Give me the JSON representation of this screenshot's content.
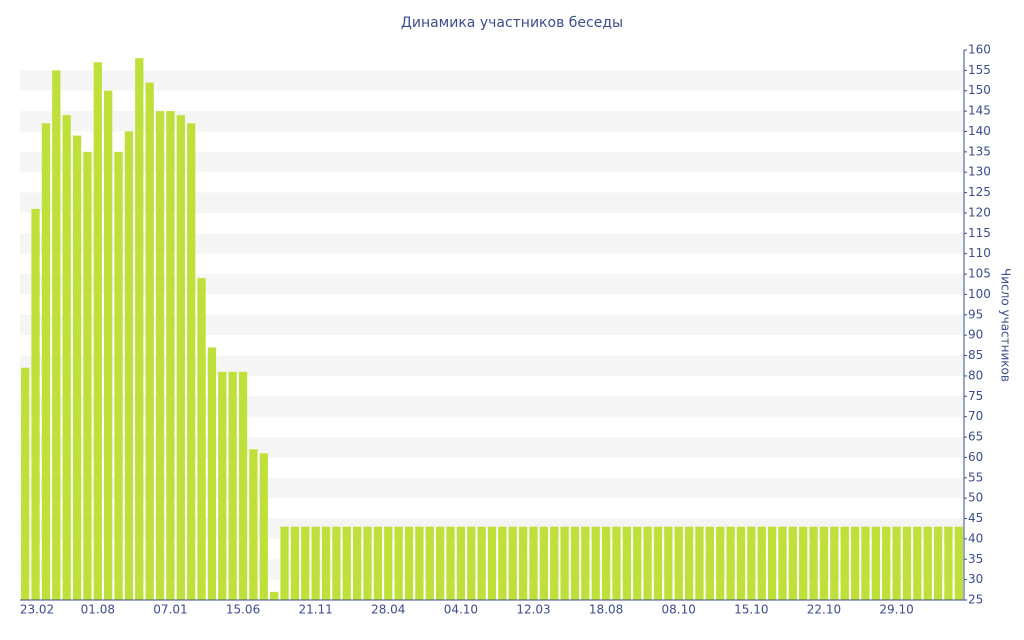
{
  "chart_data": {
    "type": "bar",
    "title": "Динамика участников беседы",
    "y_axis_label": "Число участников",
    "categories": [
      "23.02",
      null,
      null,
      null,
      null,
      null,
      null,
      "01.08",
      null,
      null,
      null,
      null,
      null,
      null,
      "07.01",
      null,
      null,
      null,
      null,
      null,
      null,
      "15.06",
      null,
      null,
      null,
      null,
      null,
      null,
      "21.11",
      null,
      null,
      null,
      null,
      null,
      null,
      "28.04",
      null,
      null,
      null,
      null,
      null,
      null,
      "04.10",
      null,
      null,
      null,
      null,
      null,
      null,
      "12.03",
      null,
      null,
      null,
      null,
      null,
      null,
      "18.08",
      null,
      null,
      null,
      null,
      null,
      null,
      "08.10",
      null,
      null,
      null,
      null,
      null,
      null,
      "15.10",
      null,
      null,
      null,
      null,
      null,
      null,
      "22.10",
      null,
      null,
      null,
      null,
      null,
      null,
      "29.10",
      null,
      null,
      null,
      null,
      null,
      null
    ],
    "values": [
      82,
      121,
      142,
      155,
      144,
      139,
      135,
      157,
      150,
      135,
      140,
      158,
      152,
      145,
      145,
      144,
      142,
      104,
      87,
      81,
      81,
      81,
      62,
      61,
      27,
      43,
      43,
      43,
      43,
      43,
      43,
      43,
      43,
      43,
      43,
      43,
      43,
      43,
      43,
      43,
      43,
      43,
      43,
      43,
      43,
      43,
      43,
      43,
      43,
      43,
      43,
      43,
      43,
      43,
      43,
      43,
      43,
      43,
      43,
      43,
      43,
      43,
      43,
      43,
      43,
      43,
      43,
      43,
      43,
      43,
      43,
      43,
      43,
      43,
      43,
      43,
      43,
      43,
      43,
      43,
      43,
      43,
      43,
      43,
      43,
      43,
      43,
      43,
      43,
      43,
      43
    ],
    "color": "#bfe03a",
    "ylim": [
      25,
      160
    ],
    "yticks": [
      25,
      30,
      35,
      40,
      45,
      50,
      55,
      60,
      65,
      70,
      75,
      80,
      85,
      90,
      95,
      100,
      105,
      110,
      115,
      120,
      125,
      130,
      135,
      140,
      145,
      150,
      155,
      160
    ],
    "grid": true,
    "y_axis_side": "right"
  }
}
